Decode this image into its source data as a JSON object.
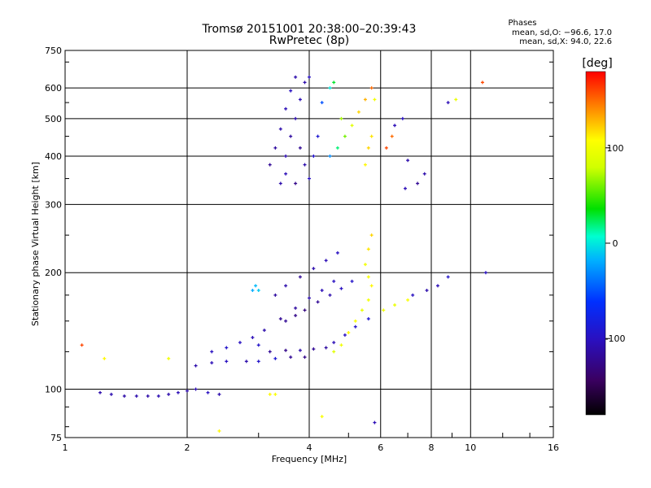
{
  "chart_data": {
    "type": "scatter",
    "title_line1": "Tromsø 20151001 20:38:00–20:39:43",
    "title_line2": "RwPretec (8p)",
    "stats": {
      "heading": "Phases",
      "line_o": "mean, sd,O: −96.6, 17.0",
      "line_x": "mean, sd,X:  94.0, 22.6"
    },
    "xlabel": "Frequency [MHz]",
    "ylabel": "Stationary phase Virtual Height [km]",
    "x_scale": "log",
    "y_scale": "log",
    "xlim": [
      1,
      16
    ],
    "ylim": [
      75,
      750
    ],
    "x_ticks": [
      1,
      2,
      4,
      6,
      8,
      10,
      16
    ],
    "x_tick_labels": [
      "1",
      "2",
      "4",
      "6",
      "8",
      "10",
      "16"
    ],
    "y_ticks": [
      75,
      100,
      200,
      300,
      400,
      500,
      600,
      750
    ],
    "y_tick_labels": [
      "75",
      "100",
      "200",
      "300",
      "400",
      "500",
      "600",
      "750"
    ],
    "grid": true,
    "colorbar": {
      "label": "[deg]",
      "min": -180,
      "max": 180,
      "ticks": [
        100,
        0,
        -100
      ],
      "tick_labels": [
        "100",
        "0",
        "-100"
      ],
      "colormap": "rainbow (black-purple-blue-cyan-green-yellow-red)"
    },
    "series": [
      {
        "points": [
          [
            1.22,
            98,
            -110
          ],
          [
            1.3,
            97,
            -108
          ],
          [
            1.4,
            96,
            -112
          ],
          [
            1.5,
            96,
            -109
          ],
          [
            1.6,
            96,
            -111
          ],
          [
            1.7,
            96,
            -107
          ],
          [
            1.8,
            97,
            -110
          ],
          [
            1.9,
            98,
            -105
          ],
          [
            2.0,
            99,
            -112
          ],
          [
            2.1,
            100,
            -108
          ],
          [
            2.25,
            98,
            -100
          ],
          [
            2.4,
            97,
            -110
          ],
          [
            3.2,
            97,
            110
          ],
          [
            3.3,
            97,
            105
          ],
          [
            2.1,
            115,
            -110
          ],
          [
            2.3,
            117,
            -105
          ],
          [
            2.5,
            118,
            -100
          ],
          [
            2.8,
            118,
            -110
          ],
          [
            3.0,
            118,
            -95
          ],
          [
            3.3,
            120,
            -90
          ],
          [
            3.6,
            121,
            -120
          ],
          [
            3.9,
            121,
            -125
          ],
          [
            2.3,
            125,
            -100
          ],
          [
            2.5,
            128,
            -95
          ],
          [
            2.7,
            132,
            -100
          ],
          [
            2.9,
            136,
            -105
          ],
          [
            3.1,
            142,
            -110
          ],
          [
            3.4,
            152,
            -120
          ],
          [
            3.7,
            162,
            -115
          ],
          [
            4.0,
            172,
            -110
          ],
          [
            4.3,
            180,
            -105
          ],
          [
            4.6,
            190,
            -100
          ],
          [
            3.0,
            130,
            -95
          ],
          [
            3.2,
            125,
            -120
          ],
          [
            3.5,
            126,
            -125
          ],
          [
            3.8,
            126,
            -110
          ],
          [
            4.1,
            127,
            -120
          ],
          [
            4.4,
            128,
            -115
          ],
          [
            4.6,
            132,
            -105
          ],
          [
            4.9,
            138,
            -100
          ],
          [
            5.2,
            145,
            -95
          ],
          [
            5.6,
            152,
            -90
          ],
          [
            3.5,
            150,
            -120
          ],
          [
            3.7,
            155,
            -125
          ],
          [
            3.9,
            160,
            -130
          ],
          [
            4.2,
            168,
            -120
          ],
          [
            4.5,
            175,
            -110
          ],
          [
            4.8,
            182,
            -100
          ],
          [
            5.1,
            190,
            -95
          ],
          [
            3.3,
            175,
            -115
          ],
          [
            3.5,
            185,
            -110
          ],
          [
            3.8,
            195,
            -120
          ],
          [
            4.1,
            205,
            -110
          ],
          [
            4.4,
            215,
            -105
          ],
          [
            4.7,
            225,
            -100
          ],
          [
            2.9,
            180,
            -20
          ],
          [
            2.95,
            185,
            -15
          ],
          [
            3.0,
            180,
            -10
          ],
          [
            4.6,
            125,
            90
          ],
          [
            4.8,
            130,
            100
          ],
          [
            5.0,
            140,
            110
          ],
          [
            5.2,
            150,
            105
          ],
          [
            5.4,
            160,
            95
          ],
          [
            5.6,
            170,
            100
          ],
          [
            5.7,
            185,
            110
          ],
          [
            5.6,
            195,
            105
          ],
          [
            5.5,
            210,
            100
          ],
          [
            5.6,
            230,
            115
          ],
          [
            5.7,
            250,
            120
          ],
          [
            6.1,
            160,
            100
          ],
          [
            6.5,
            165,
            95
          ],
          [
            7.0,
            170,
            105
          ],
          [
            7.2,
            175,
            -100
          ],
          [
            7.8,
            180,
            -110
          ],
          [
            8.3,
            185,
            -105
          ],
          [
            8.8,
            195,
            -95
          ],
          [
            3.4,
            340,
            -110
          ],
          [
            3.5,
            360,
            -105
          ],
          [
            3.5,
            400,
            -110
          ],
          [
            3.6,
            450,
            -115
          ],
          [
            3.7,
            500,
            -110
          ],
          [
            3.8,
            560,
            -105
          ],
          [
            3.9,
            620,
            -110
          ],
          [
            4.0,
            640,
            -100
          ],
          [
            3.2,
            380,
            -120
          ],
          [
            3.3,
            420,
            -115
          ],
          [
            3.4,
            470,
            -110
          ],
          [
            3.5,
            530,
            -105
          ],
          [
            3.6,
            590,
            -100
          ],
          [
            3.7,
            640,
            -110
          ],
          [
            4.0,
            350,
            -100
          ],
          [
            4.1,
            400,
            -95
          ],
          [
            4.2,
            450,
            -90
          ],
          [
            3.9,
            380,
            -110
          ],
          [
            3.8,
            420,
            -120
          ],
          [
            3.7,
            340,
            -125
          ],
          [
            4.5,
            400,
            -30
          ],
          [
            4.7,
            420,
            20
          ],
          [
            4.9,
            450,
            60
          ],
          [
            5.1,
            480,
            90
          ],
          [
            5.3,
            520,
            120
          ],
          [
            5.5,
            560,
            130
          ],
          [
            5.7,
            600,
            150
          ],
          [
            5.8,
            560,
            100
          ],
          [
            5.5,
            380,
            110
          ],
          [
            5.6,
            420,
            120
          ],
          [
            5.7,
            450,
            115
          ],
          [
            4.8,
            500,
            70
          ],
          [
            4.3,
            550,
            -50
          ],
          [
            4.5,
            600,
            0
          ],
          [
            4.6,
            620,
            30
          ],
          [
            6.2,
            420,
            160
          ],
          [
            6.4,
            450,
            150
          ],
          [
            6.5,
            480,
            -105
          ],
          [
            6.8,
            500,
            -100
          ],
          [
            7.0,
            390,
            -110
          ],
          [
            6.9,
            330,
            -105
          ],
          [
            7.4,
            340,
            -120
          ],
          [
            7.7,
            360,
            -110
          ],
          [
            8.8,
            550,
            -105
          ],
          [
            9.2,
            560,
            95
          ],
          [
            10.7,
            620,
            160
          ],
          [
            10.9,
            200,
            -100
          ],
          [
            1.1,
            130,
            160
          ],
          [
            1.25,
            120,
            110
          ],
          [
            1.8,
            120,
            100
          ],
          [
            4.3,
            85,
            105
          ],
          [
            5.8,
            82,
            -105
          ],
          [
            2.4,
            78,
            110
          ]
        ]
      }
    ]
  }
}
